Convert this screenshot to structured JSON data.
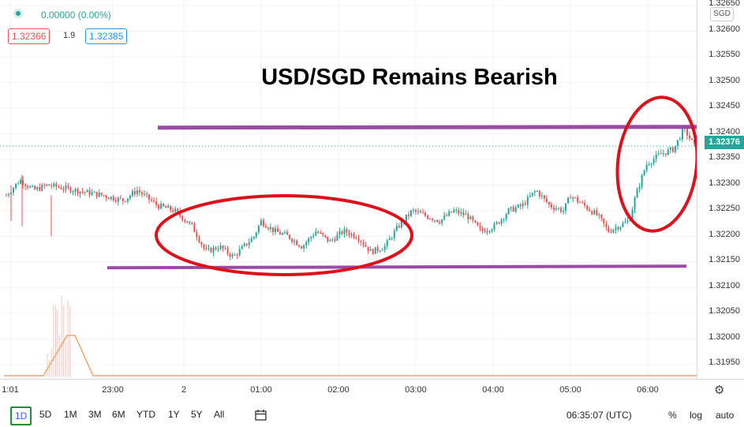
{
  "legend": {
    "change": "0.00000 (0.00%)",
    "sell_price": "1.32366",
    "spread": "1.9",
    "buy_price": "1.32385"
  },
  "annotation": {
    "title": "USD/SGD Remains Bearish",
    "colors": {
      "resistance_line": "#9c4aa8",
      "ellipse": "#e0101a"
    }
  },
  "price_axis": {
    "currency": "SGD",
    "ticks": [
      "1.32650",
      "1.32600",
      "1.32550",
      "1.32500",
      "1.32450",
      "1.32400",
      "1.32350",
      "1.32300",
      "1.32250",
      "1.32200",
      "1.32150",
      "1.32100",
      "1.32050",
      "1.32000",
      "1.31950"
    ],
    "last_price": "1.32376"
  },
  "time_axis": {
    "ticks": [
      "1:01",
      "23:00",
      "2",
      "01:00",
      "02:00",
      "03:00",
      "04:00",
      "05:00",
      "06:00"
    ]
  },
  "bottom_bar": {
    "ranges": [
      "1D",
      "5D",
      "1M",
      "3M",
      "6M",
      "YTD",
      "1Y",
      "5Y",
      "All"
    ],
    "clock": "06:35:07 (UTC)",
    "percent": "%",
    "log": "log",
    "auto": "auto"
  },
  "colors": {
    "up": "#26a69a",
    "down": "#ef5350",
    "grid": "#f0f3fa",
    "volume_line": "#f5a36b"
  },
  "chart_data": {
    "type": "candlestick",
    "symbol": "USD/SGD",
    "ylim": [
      1.3193,
      1.3266
    ],
    "x_labels": [
      "1:01",
      "23:00",
      "2",
      "01:00",
      "02:00",
      "03:00",
      "04:00",
      "05:00",
      "06:00"
    ],
    "close_path": [
      [
        0.0,
        1.3228
      ],
      [
        0.02,
        1.3231
      ],
      [
        0.04,
        1.3229
      ],
      [
        0.06,
        1.323
      ],
      [
        0.1,
        1.3229
      ],
      [
        0.14,
        1.3228
      ],
      [
        0.17,
        1.3227
      ],
      [
        0.19,
        1.3229
      ],
      [
        0.22,
        1.3226
      ],
      [
        0.245,
        1.3225
      ],
      [
        0.27,
        1.3222
      ],
      [
        0.29,
        1.3217
      ],
      [
        0.31,
        1.3218
      ],
      [
        0.33,
        1.3216
      ],
      [
        0.36,
        1.322
      ],
      [
        0.37,
        1.3223
      ],
      [
        0.39,
        1.3221
      ],
      [
        0.41,
        1.322
      ],
      [
        0.43,
        1.3218
      ],
      [
        0.45,
        1.3221
      ],
      [
        0.47,
        1.3219
      ],
      [
        0.49,
        1.3221
      ],
      [
        0.51,
        1.322
      ],
      [
        0.53,
        1.3217
      ],
      [
        0.55,
        1.3218
      ],
      [
        0.57,
        1.3222
      ],
      [
        0.59,
        1.3225
      ],
      [
        0.61,
        1.3224
      ],
      [
        0.63,
        1.3223
      ],
      [
        0.65,
        1.3225
      ],
      [
        0.67,
        1.3224
      ],
      [
        0.69,
        1.3221
      ],
      [
        0.71,
        1.3222
      ],
      [
        0.73,
        1.3225
      ],
      [
        0.75,
        1.3226
      ],
      [
        0.77,
        1.3229
      ],
      [
        0.79,
        1.3226
      ],
      [
        0.81,
        1.3225
      ],
      [
        0.82,
        1.3228
      ],
      [
        0.84,
        1.3226
      ],
      [
        0.86,
        1.3224
      ],
      [
        0.875,
        1.3221
      ],
      [
        0.89,
        1.3222
      ],
      [
        0.905,
        1.3223
      ],
      [
        0.915,
        1.3228
      ],
      [
        0.93,
        1.3234
      ],
      [
        0.95,
        1.3236
      ],
      [
        0.97,
        1.3237
      ],
      [
        0.985,
        1.3241
      ],
      [
        1.0,
        1.32376
      ]
    ],
    "resistance": 1.32412,
    "support": 1.32145
  }
}
